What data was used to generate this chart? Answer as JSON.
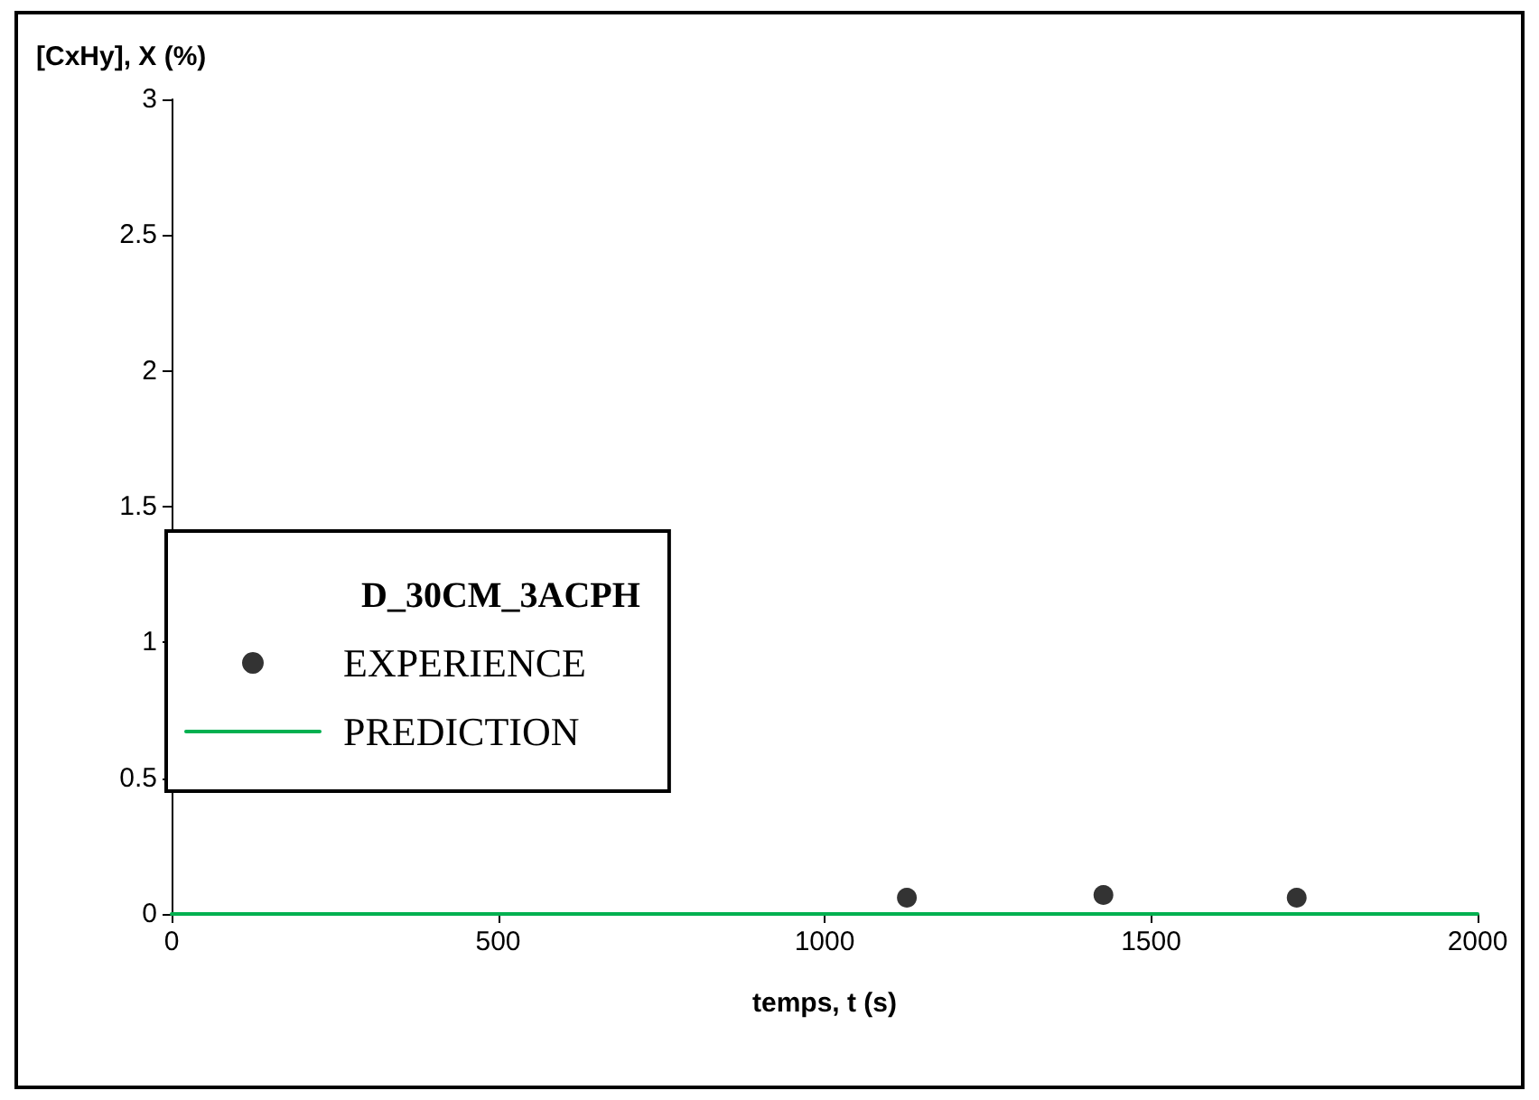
{
  "chart_data": {
    "type": "scatter",
    "xlabel": "temps, t (s)",
    "ylabel": "[CxHy], X (%)",
    "legend_title": "D_30CM_3ACPH",
    "xlim": [
      0,
      2000
    ],
    "xticks": [
      0,
      500,
      1000,
      1500,
      2000
    ],
    "ylim": [
      0,
      3
    ],
    "yticks": [
      0,
      0.5,
      1,
      1.5,
      2,
      2.5,
      3
    ],
    "grid": false,
    "legend": "left",
    "series": [
      {
        "name": "EXPERIENCE",
        "color": "#000000",
        "marker": "circle",
        "x": [
          1126,
          1427,
          1723
        ],
        "values": [
          0.06,
          0.07,
          0.06
        ]
      },
      {
        "name": "PREDICTION",
        "type": "line",
        "color": "#00b050",
        "marker": "none",
        "line_style": "solid",
        "x": [
          0,
          500,
          1000,
          1500,
          2000
        ],
        "values": [
          0,
          0,
          0,
          0,
          0
        ]
      }
    ]
  }
}
